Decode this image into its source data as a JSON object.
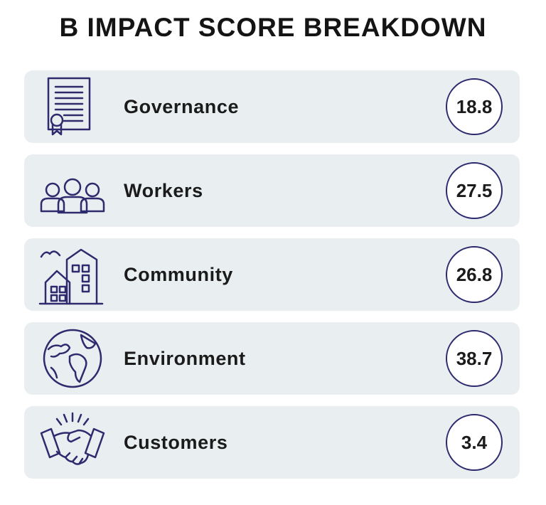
{
  "title": "B IMPACT SCORE BREAKDOWN",
  "categories": [
    {
      "label": "Governance",
      "score": "18.8",
      "icon": "certificate-icon"
    },
    {
      "label": "Workers",
      "score": "27.5",
      "icon": "people-icon"
    },
    {
      "label": "Community",
      "score": "26.8",
      "icon": "buildings-icon"
    },
    {
      "label": "Environment",
      "score": "38.7",
      "icon": "globe-icon"
    },
    {
      "label": "Customers",
      "score": "3.4",
      "icon": "handshake-icon"
    }
  ],
  "colors": {
    "accent": "#2d2a6e",
    "row_bg": "#e9eff1",
    "text": "#1b1b1b"
  }
}
